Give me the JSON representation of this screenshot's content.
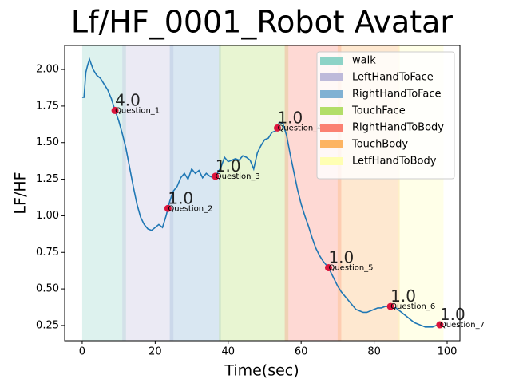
{
  "chart_data": {
    "type": "line",
    "title": "Lf/HF_0001_Robot Avatar",
    "xlabel": "Time(sec)",
    "ylabel": "LF/HF",
    "xlim": [
      -4.8,
      103.5
    ],
    "ylim": [
      0.146,
      2.164
    ],
    "xticks": [
      0,
      20,
      40,
      60,
      80,
      100
    ],
    "yticks": [
      0.25,
      {
        "value": 0.5,
        "label": "0.50"
      },
      0.75,
      {
        "value": 1.0,
        "label": "1.00"
      },
      1.25,
      {
        "value": 1.5,
        "label": "1.50"
      },
      1.75,
      {
        "value": 2.0,
        "label": "2.00"
      }
    ],
    "legend_position": "upper right",
    "spans": [
      {
        "name": "walk",
        "start": 0,
        "end": 12,
        "color": "#8dd3c7"
      },
      {
        "name": "LeftHandToFace",
        "start": 11,
        "end": 25,
        "color": "#bebada"
      },
      {
        "name": "RightHandToFace",
        "start": 24,
        "end": 38,
        "color": "#80b1d3"
      },
      {
        "name": "TouchFace",
        "start": 37.5,
        "end": 56.5,
        "color": "#b3de69"
      },
      {
        "name": "RightHandToBody",
        "start": 55.5,
        "end": 71,
        "color": "#fb8072"
      },
      {
        "name": "TouchBody",
        "start": 70,
        "end": 87,
        "color": "#fdb462"
      },
      {
        "name": "LetfHandToBody",
        "start": 86.5,
        "end": 99,
        "color": "#ffffb3"
      }
    ],
    "series": [
      {
        "color": "#1f77b4",
        "x": [
          0,
          0.5,
          1,
          1.5,
          2,
          3,
          4,
          5,
          6,
          7,
          8,
          9,
          10,
          11,
          12,
          13,
          14,
          15,
          16,
          17,
          18,
          19,
          20,
          21,
          22,
          23,
          23.5,
          24,
          25,
          26,
          27,
          28,
          29,
          30,
          31,
          32,
          33,
          34,
          35,
          36,
          36.5,
          37,
          38,
          39,
          40,
          41,
          42,
          43,
          44,
          45,
          46,
          47,
          48,
          49,
          50,
          51,
          52,
          53,
          53.5,
          54,
          55,
          56,
          57,
          58,
          59,
          60,
          61,
          62,
          63,
          64,
          65,
          66,
          67,
          67.5,
          68,
          69,
          70,
          71,
          72,
          73,
          74,
          75,
          76,
          77,
          78,
          79,
          80,
          81,
          82,
          83,
          84,
          84.5,
          85,
          86,
          87,
          88,
          89,
          90,
          91,
          92,
          93,
          94,
          95,
          96,
          97,
          98,
          99
        ],
        "values": [
          1.81,
          1.81,
          1.98,
          2.03,
          2.07,
          2.0,
          1.96,
          1.94,
          1.9,
          1.86,
          1.8,
          1.72,
          1.65,
          1.56,
          1.46,
          1.33,
          1.2,
          1.08,
          0.99,
          0.94,
          0.91,
          0.9,
          0.92,
          0.94,
          0.92,
          1.0,
          1.05,
          1.1,
          1.17,
          1.2,
          1.26,
          1.29,
          1.25,
          1.32,
          1.29,
          1.31,
          1.26,
          1.29,
          1.27,
          1.26,
          1.27,
          1.29,
          1.33,
          1.4,
          1.37,
          1.38,
          1.39,
          1.38,
          1.41,
          1.4,
          1.38,
          1.32,
          1.43,
          1.48,
          1.52,
          1.53,
          1.57,
          1.58,
          1.6,
          1.64,
          1.63,
          1.55,
          1.42,
          1.3,
          1.18,
          1.08,
          1.0,
          0.93,
          0.85,
          0.78,
          0.73,
          0.69,
          0.66,
          0.645,
          0.62,
          0.57,
          0.52,
          0.48,
          0.45,
          0.42,
          0.39,
          0.36,
          0.35,
          0.34,
          0.34,
          0.35,
          0.36,
          0.37,
          0.37,
          0.38,
          0.38,
          0.38,
          0.37,
          0.37,
          0.35,
          0.33,
          0.31,
          0.29,
          0.27,
          0.26,
          0.25,
          0.24,
          0.24,
          0.24,
          0.25,
          0.255,
          0.26
        ]
      }
    ],
    "points": {
      "color": "#dc143c",
      "score_color": "#ff0000",
      "label_color": "#0000ff",
      "x": [
        9,
        23.5,
        36.5,
        53.5,
        67.5,
        84.5,
        98
      ],
      "values": [
        1.72,
        1.05,
        1.27,
        1.6,
        0.645,
        0.38,
        0.255
      ],
      "scores": [
        "4.0",
        "1.0",
        "1.0",
        "1.0",
        "1.0",
        "1.0",
        "1.0"
      ],
      "labels": [
        "Question_1",
        "Question_2",
        "Question_3",
        "Question_4",
        "Question_5",
        "Question_6",
        "Question_7"
      ]
    }
  }
}
